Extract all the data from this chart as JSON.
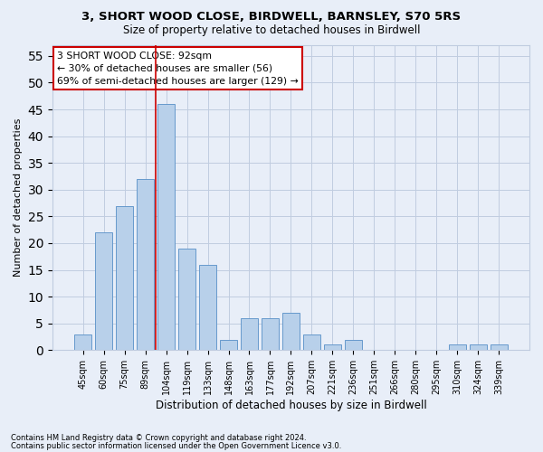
{
  "title1": "3, SHORT WOOD CLOSE, BIRDWELL, BARNSLEY, S70 5RS",
  "title2": "Size of property relative to detached houses in Birdwell",
  "xlabel": "Distribution of detached houses by size in Birdwell",
  "ylabel": "Number of detached properties",
  "bar_labels": [
    "45sqm",
    "60sqm",
    "75sqm",
    "89sqm",
    "104sqm",
    "119sqm",
    "133sqm",
    "148sqm",
    "163sqm",
    "177sqm",
    "192sqm",
    "207sqm",
    "221sqm",
    "236sqm",
    "251sqm",
    "266sqm",
    "280sqm",
    "295sqm",
    "310sqm",
    "324sqm",
    "339sqm"
  ],
  "bar_values": [
    3,
    22,
    27,
    32,
    46,
    19,
    16,
    2,
    6,
    6,
    7,
    3,
    1,
    2,
    0,
    0,
    0,
    0,
    1,
    1,
    1
  ],
  "bar_color": "#b8d0ea",
  "bar_edge_color": "#6699cc",
  "vline_color": "#cc0000",
  "ylim": [
    0,
    57
  ],
  "yticks": [
    0,
    5,
    10,
    15,
    20,
    25,
    30,
    35,
    40,
    45,
    50,
    55
  ],
  "annotation_text": "3 SHORT WOOD CLOSE: 92sqm\n← 30% of detached houses are smaller (56)\n69% of semi-detached houses are larger (129) →",
  "annotation_box_color": "#ffffff",
  "annotation_box_edge": "#cc0000",
  "footer1": "Contains HM Land Registry data © Crown copyright and database right 2024.",
  "footer2": "Contains public sector information licensed under the Open Government Licence v3.0.",
  "bg_color": "#e8eef8",
  "grid_color": "#c0cce0"
}
